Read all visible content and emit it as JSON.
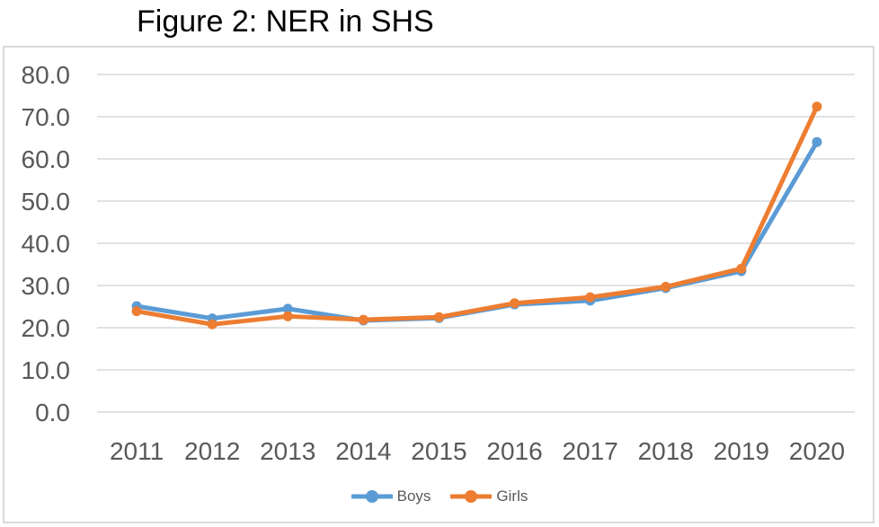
{
  "chart_data": {
    "type": "line",
    "title": "Figure 2: NER in SHS",
    "categories": [
      "2011",
      "2012",
      "2013",
      "2014",
      "2015",
      "2016",
      "2017",
      "2018",
      "2019",
      "2020"
    ],
    "series": [
      {
        "name": "Boys",
        "color": "#5B9BD5",
        "values": [
          25.1,
          22.2,
          24.5,
          21.7,
          22.3,
          25.5,
          26.4,
          29.4,
          33.4,
          64.0
        ]
      },
      {
        "name": "Girls",
        "color": "#ED7D31",
        "values": [
          23.9,
          20.8,
          22.7,
          21.9,
          22.5,
          25.8,
          27.2,
          29.7,
          34.0,
          72.4
        ]
      }
    ],
    "ylim": [
      0,
      80
    ],
    "ytick_step": 10,
    "ytick_labels": [
      "0.0",
      "10.0",
      "20.0",
      "30.0",
      "40.0",
      "50.0",
      "60.0",
      "70.0",
      "80.0"
    ],
    "grid": true,
    "legend_position": "bottom"
  },
  "style": {
    "grid_color": "#D9D9D9",
    "axis_text_color": "#595959",
    "title_color": "#000000",
    "border_color": "#D9D9D9",
    "background": "#FFFFFF"
  }
}
